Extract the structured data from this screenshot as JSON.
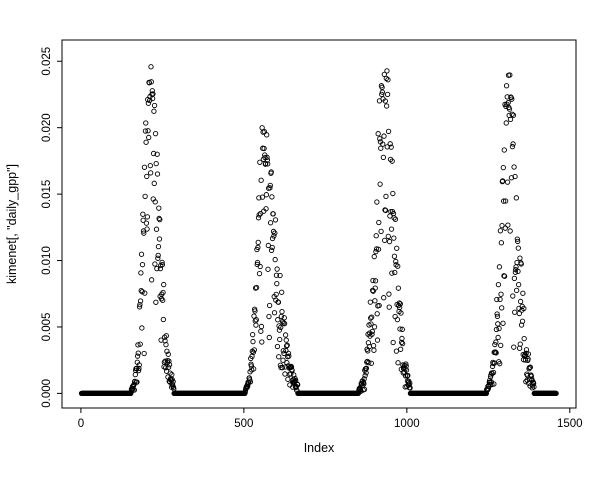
{
  "chart_data": {
    "type": "scatter",
    "title": "",
    "xlabel": "Index",
    "ylabel": "kimenet[, \"daily_gpp\"]",
    "xlim": [
      0,
      1500
    ],
    "ylim": [
      0,
      0.025
    ],
    "x_ticks": [
      0,
      500,
      1000,
      1500
    ],
    "x_tick_labels": [
      "0",
      "500",
      "1000",
      "1500"
    ],
    "y_ticks": [
      0,
      0.005,
      0.01,
      0.015,
      0.02,
      0.025
    ],
    "y_tick_labels": [
      "0.000",
      "0.005",
      "0.010",
      "0.015",
      "0.020",
      "0.025"
    ],
    "grid": false,
    "legend": "none",
    "marker": "open-circle",
    "marker_color": "#000000",
    "background_color": "#ffffff",
    "seed": 7,
    "description": "Four seasonal peaks of daily GPP over an index of ~1460 days; long runs of exact zeros between growing-season peaks",
    "segments": [
      {
        "type": "flat",
        "x_start": 2,
        "x_end": 148,
        "y": 0
      },
      {
        "type": "peak",
        "x_start": 149,
        "x_end": 285,
        "x_peak": 212,
        "y_max": 0.0255
      },
      {
        "type": "flat",
        "x_start": 286,
        "x_end": 497,
        "y": 0
      },
      {
        "type": "peak",
        "x_start": 498,
        "x_end": 665,
        "x_peak": 560,
        "y_max": 0.0205
      },
      {
        "type": "flat",
        "x_start": 666,
        "x_end": 845,
        "y": 0
      },
      {
        "type": "peak",
        "x_start": 846,
        "x_end": 1010,
        "x_peak": 930,
        "y_max": 0.0255
      },
      {
        "type": "flat",
        "x_start": 1011,
        "x_end": 1238,
        "y": 0
      },
      {
        "type": "peak",
        "x_start": 1239,
        "x_end": 1390,
        "x_peak": 1310,
        "y_max": 0.0245
      },
      {
        "type": "flat",
        "x_start": 1391,
        "x_end": 1458,
        "y": 0
      }
    ]
  }
}
